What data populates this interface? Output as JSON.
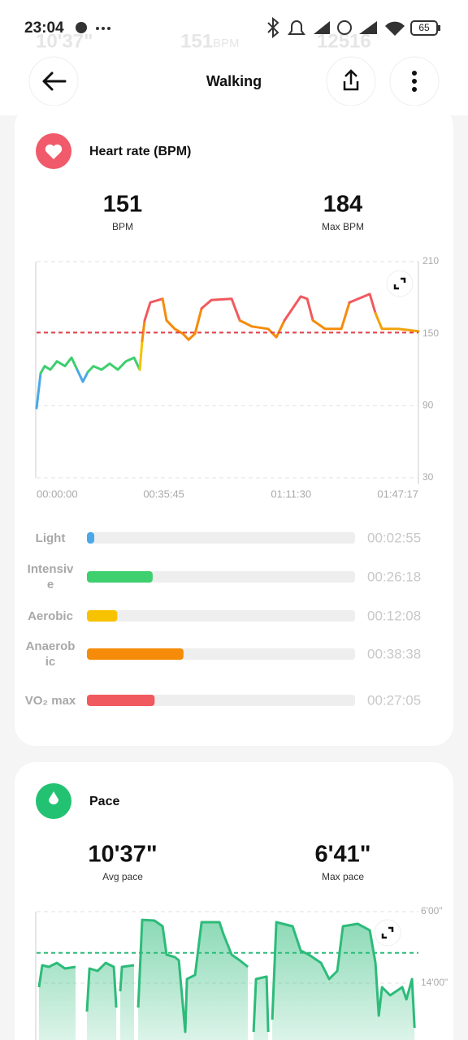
{
  "status_bar": {
    "time": "23:04",
    "battery": "65"
  },
  "background_stats": [
    "10'37\"",
    "151",
    "BPM",
    "12516"
  ],
  "header": {
    "title": "Walking"
  },
  "heart_rate": {
    "title": "Heart rate (BPM)",
    "stats": [
      {
        "value": 151,
        "label": "BPM"
      },
      {
        "value": 184,
        "label": "Max BPM"
      }
    ]
  },
  "pace": {
    "title": "Pace",
    "stats": [
      {
        "value": "10'37\"",
        "label": "Avg pace"
      },
      {
        "value": "6'41\"",
        "label": "Max pace"
      }
    ]
  },
  "chart_data": [
    {
      "type": "line",
      "xlim": [
        0,
        6437
      ],
      "xticks": [
        {
          "value": 0,
          "label": "00:00:00"
        },
        {
          "value": 2145,
          "label": "00:35:45"
        },
        {
          "value": 4290,
          "label": "01:11:30"
        },
        {
          "value": 6437,
          "label": "01:47:17"
        }
      ],
      "ylim": [
        30,
        210
      ],
      "yticks": [
        30,
        90,
        150,
        210
      ],
      "grid": true,
      "reference_line": {
        "value": 151,
        "color": "#e8414b"
      },
      "series": [
        {
          "color": "#4aa8e8",
          "x": [
            0,
            68
          ],
          "values": [
            88,
            117
          ]
        },
        {
          "color": "#3ecf6e",
          "x": [
            68,
            137,
            233,
            342,
            479,
            589,
            685
          ],
          "values": [
            117,
            123,
            120,
            127,
            123,
            130,
            120
          ]
        },
        {
          "color": "#4aa8e8",
          "x": [
            685,
            781,
            863
          ],
          "values": [
            120,
            110,
            118
          ]
        },
        {
          "color": "#3ecf6e",
          "x": [
            863,
            959,
            1096,
            1233,
            1370,
            1507,
            1644,
            1740
          ],
          "values": [
            118,
            123,
            120,
            125,
            120,
            127,
            130,
            120
          ]
        },
        {
          "color": "#f7c200",
          "x": [
            1740,
            1781
          ],
          "values": [
            120,
            144
          ]
        },
        {
          "color": "#f68b0a",
          "x": [
            1781,
            1822
          ],
          "values": [
            144,
            161
          ]
        },
        {
          "color": "#f05a5f",
          "x": [
            1822,
            1918,
            2124
          ],
          "values": [
            161,
            176,
            179
          ]
        },
        {
          "color": "#f68b0a",
          "x": [
            2124,
            2192,
            2329,
            2466,
            2562,
            2671,
            2781
          ],
          "values": [
            179,
            161,
            154,
            150,
            145,
            150,
            171
          ]
        },
        {
          "color": "#f05a5f",
          "x": [
            2781,
            2946,
            3288,
            3425
          ],
          "values": [
            171,
            178,
            179,
            161
          ]
        },
        {
          "color": "#f68b0a",
          "x": [
            3425,
            3630,
            3904,
            4041,
            4178
          ],
          "values": [
            161,
            156,
            154,
            147,
            161
          ]
        },
        {
          "color": "#f05a5f",
          "x": [
            4178,
            4452,
            4562,
            4658
          ],
          "values": [
            161,
            181,
            179,
            161
          ]
        },
        {
          "color": "#f68b0a",
          "x": [
            4658,
            4863,
            5137,
            5274
          ],
          "values": [
            161,
            154,
            154,
            176
          ]
        },
        {
          "color": "#f05a5f",
          "x": [
            5274,
            5617,
            5713
          ],
          "values": [
            176,
            183,
            167
          ]
        },
        {
          "color": "#f2a20c",
          "x": [
            5713,
            5822,
            6096,
            6437
          ],
          "values": [
            167,
            154,
            154,
            152
          ]
        }
      ]
    },
    {
      "type": "hbar",
      "categories": [
        "Light",
        "Intensive",
        "Aerobic",
        "Anaerobic",
        "VO₂ max"
      ],
      "values": [
        175,
        1578,
        728,
        2318,
        1625
      ],
      "value_labels": [
        "00:02:55",
        "00:26:18",
        "00:12:08",
        "00:38:38",
        "00:27:05"
      ],
      "colors": [
        "#4aa8e8",
        "#3ecf6e",
        "#f7c200",
        "#f68b0a",
        "#f05a5f"
      ],
      "xlim": [
        0,
        6437
      ]
    },
    {
      "type": "area",
      "color": "#2dbb7a",
      "xlim": [
        0,
        6437
      ],
      "ylim": [
        1320,
        360
      ],
      "yticks": [
        {
          "value": 360,
          "label": "6'00\""
        },
        {
          "value": 840,
          "label": "14'00\""
        }
      ],
      "grid": true,
      "reference_line": {
        "value": 637,
        "color": "#2dbb7a"
      },
      "x": [
        41,
        96,
        206,
        343,
        480,
        658,
        754,
        849,
        891,
        1028,
        1165,
        1302,
        1343,
        1370,
        1411,
        1439,
        1644,
        1671,
        1713,
        1781,
        1987,
        2124,
        2192,
        2329,
        2398,
        2507,
        2535,
        2672,
        2781,
        3083,
        3151,
        3288,
        3425,
        3562,
        3603,
        3658,
        3699,
        3877,
        3905,
        3932,
        3973,
        4042,
        4316,
        4453,
        4590,
        4795,
        4932,
        5069,
        5165,
        5412,
        5617,
        5713,
        5768,
        5823,
        5960,
        6165,
        6234,
        6329,
        6371
      ],
      "values": [
        867,
        720,
        731,
        704,
        742,
        731,
        null,
        1031,
        742,
        758,
        704,
        731,
        1004,
        null,
        895,
        731,
        720,
        null,
        1004,
        415,
        420,
        458,
        649,
        665,
        687,
        1167,
        813,
        785,
        431,
        431,
        513,
        649,
        687,
        731,
        null,
        1167,
        813,
        796,
        1167,
        null,
        1085,
        431,
        458,
        622,
        649,
        704,
        813,
        758,
        458,
        442,
        485,
        704,
        1058,
        867,
        922,
        867,
        949,
        813,
        1140
      ]
    }
  ]
}
